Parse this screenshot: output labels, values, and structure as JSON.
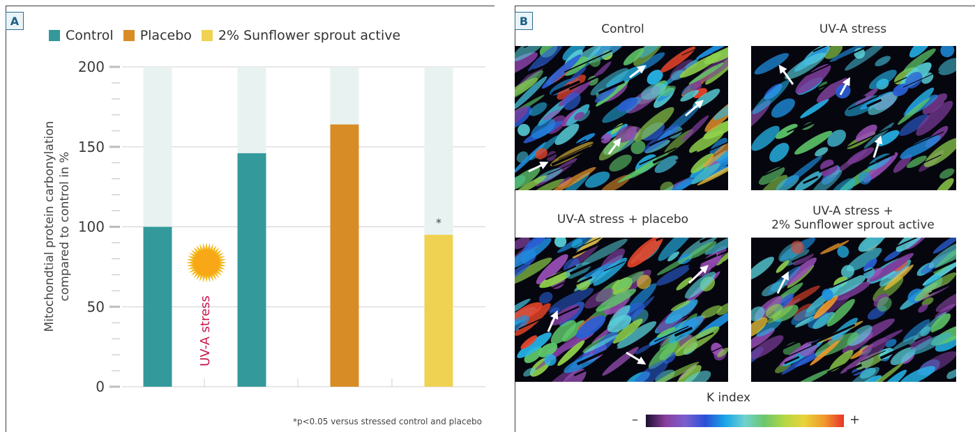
{
  "panels": {
    "a_label": "A",
    "b_label": "B"
  },
  "chart_data": {
    "type": "bar",
    "categories": [
      "Control",
      "UV-A stress control",
      "UV-A stress + placebo",
      "UV-A stress + 2% Sunflower sprout active"
    ],
    "values": [
      100,
      146,
      164,
      95
    ],
    "background_values": [
      200,
      200,
      200,
      200
    ],
    "colors": [
      "#33999b",
      "#33999b",
      "#d88c26",
      "#f0d253"
    ],
    "background_color": "#e8f2f1",
    "ylim": [
      0,
      200
    ],
    "yticks": [
      0,
      50,
      100,
      150,
      200
    ],
    "ylabel_line1": "Mitochondtial protein carbonylation",
    "ylabel_line2": "compared to control in %",
    "xlabel": "",
    "grid": true,
    "legend": [
      {
        "name": "Control",
        "color": "#33999b"
      },
      {
        "name": "Placebo",
        "color": "#d88c26"
      },
      {
        "name": "2% Sunflower sprout active",
        "color": "#f0d253"
      }
    ],
    "legend_position": "top-left",
    "annotations": [
      {
        "text": "*",
        "category_index": 3
      },
      {
        "text": "UV-A stress",
        "color": "#c8164a"
      }
    ],
    "footnote": "*p<0.05 versus stressed control and placebo"
  },
  "icons": {
    "sun": "sun-icon",
    "arrow": "arrow-icon"
  },
  "images": {
    "items": [
      {
        "title_lines": [
          "Control"
        ]
      },
      {
        "title_lines": [
          "UV-A stress"
        ]
      },
      {
        "title_lines": [
          "UV-A stress + placebo"
        ]
      },
      {
        "title_lines": [
          "UV-A stress +",
          "2% Sunflower sprout active"
        ]
      }
    ]
  },
  "kindex": {
    "label": "K index",
    "minus": "–",
    "plus": "+",
    "colors": [
      "#1a0f2e",
      "#8a3f9e",
      "#7a5fd0",
      "#2a4fd6",
      "#18a6e8",
      "#6fd2d0",
      "#6cc66a",
      "#b4d844",
      "#e9d33a",
      "#f09a2c",
      "#e8352a"
    ]
  }
}
